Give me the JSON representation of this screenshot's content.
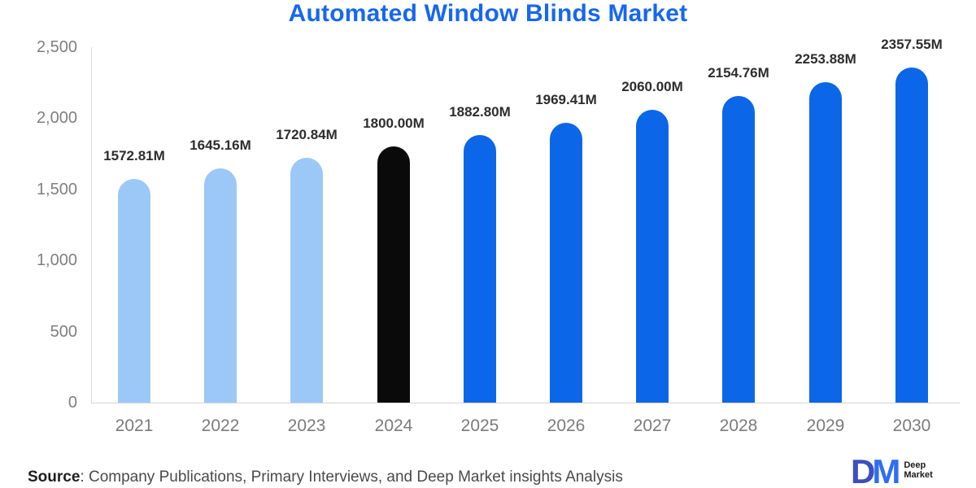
{
  "chart_data": {
    "type": "bar",
    "title": "Automated Window Blinds Market",
    "categories": [
      "2021",
      "2022",
      "2023",
      "2024",
      "2025",
      "2026",
      "2027",
      "2028",
      "2029",
      "2030"
    ],
    "values": [
      1572.81,
      1645.16,
      1720.84,
      1800.0,
      1882.8,
      1969.41,
      2060.0,
      2154.76,
      2253.88,
      2357.55
    ],
    "value_labels": [
      "1572.81M",
      "1645.16M",
      "1720.84M",
      "1800.00M",
      "1882.80M",
      "1969.41M",
      "2060.00M",
      "2154.76M",
      "2253.88M",
      "2357.55M"
    ],
    "bar_colors": [
      "#9cc8f7",
      "#9cc8f7",
      "#9cc8f7",
      "#0a0a0a",
      "#0b66e8",
      "#0b66e8",
      "#0b66e8",
      "#0b66e8",
      "#0b66e8",
      "#0b66e8"
    ],
    "ylim": [
      0,
      2500
    ],
    "ytick_values": [
      0,
      500,
      1000,
      1500,
      2000,
      2500
    ],
    "ytick_labels": [
      "0",
      "500",
      "1,000",
      "1,500",
      "2,000",
      "2,500"
    ],
    "xlabel": "",
    "ylabel": "",
    "legend_position": "none",
    "grid": "off"
  },
  "colors": {
    "title": "#1667f0",
    "past_bars": "#9cc8f7",
    "base_year_bar": "#0a0a0a",
    "forecast_bars": "#0b66e8",
    "axis": "#d9d9d9",
    "logo_d": "#3c4ec1",
    "logo_m": "#2f6ef2"
  },
  "footer": {
    "source_label": "Source",
    "source_text": ": Company Publications, Primary Interviews, and Deep Market insights Analysis",
    "logo": {
      "monogram_d": "D",
      "monogram_m": "M",
      "line1": "Deep",
      "line2": "Market"
    }
  }
}
